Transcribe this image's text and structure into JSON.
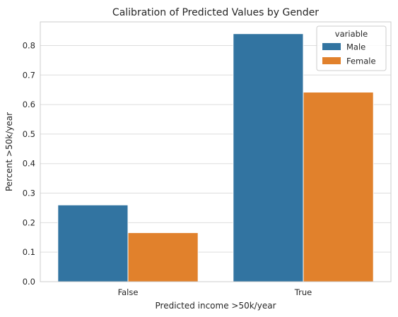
{
  "chart_data": {
    "type": "bar",
    "title": "Calibration of Predicted Values by Gender",
    "xlabel": "Predicted income >50k/year",
    "ylabel": "Percent >50k/year",
    "categories": [
      "False",
      "True"
    ],
    "series": [
      {
        "name": "Male",
        "values": [
          0.26,
          0.84
        ],
        "color": "#3274a1"
      },
      {
        "name": "Female",
        "values": [
          0.166,
          0.642
        ],
        "color": "#e1812c"
      }
    ],
    "ylim": [
      0,
      0.88
    ],
    "yticks": [
      "0.0",
      "0.1",
      "0.2",
      "0.3",
      "0.4",
      "0.5",
      "0.6",
      "0.7",
      "0.8"
    ],
    "grid": true,
    "legend": {
      "title": "variable",
      "placement": "top-right"
    }
  }
}
